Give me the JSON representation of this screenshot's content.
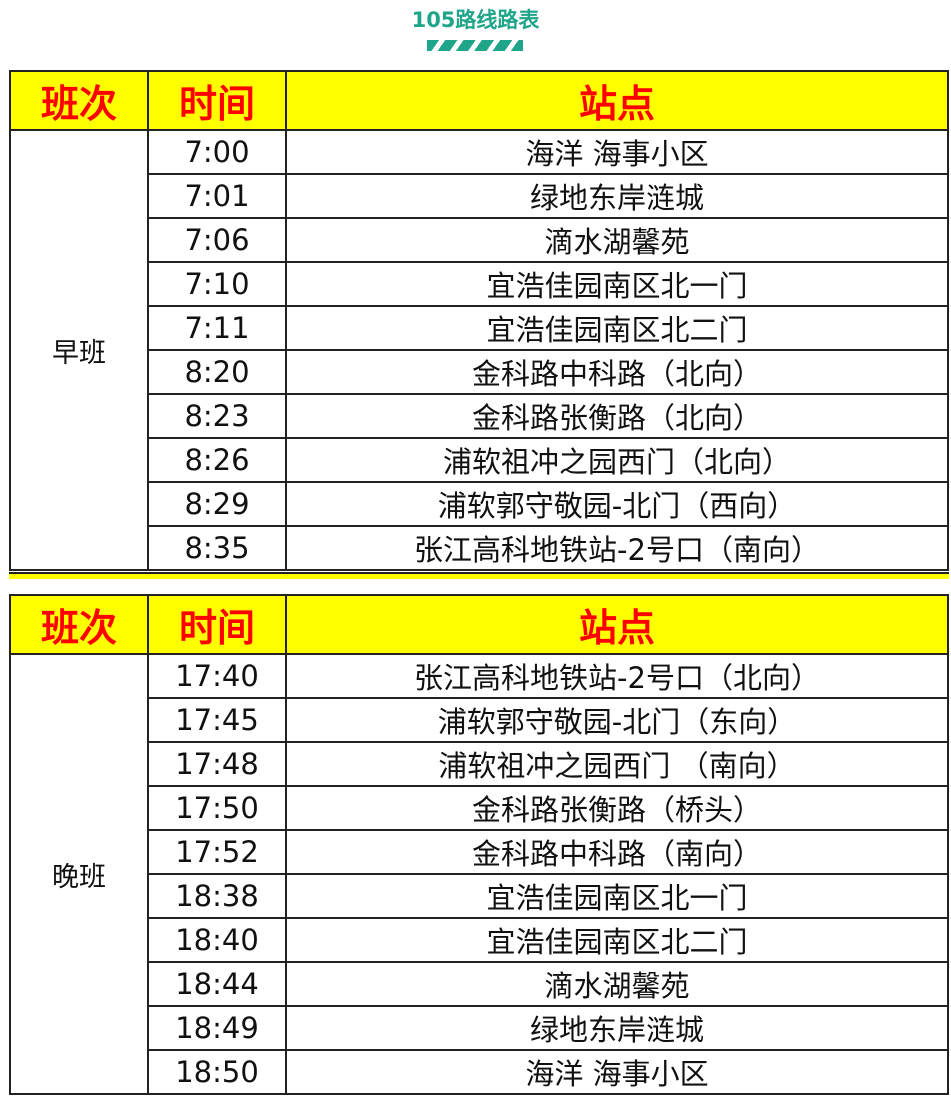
{
  "title": "105路线路表",
  "headers": {
    "shift": "班次",
    "time": "时间",
    "stop": "站点"
  },
  "morning": {
    "shift": "早班",
    "rows": [
      {
        "time": "7:00",
        "stop": "海洋 海事小区"
      },
      {
        "time": "7:01",
        "stop": "绿地东岸涟城"
      },
      {
        "time": "7:06",
        "stop": "滴水湖馨苑"
      },
      {
        "time": "7:10",
        "stop": "宜浩佳园南区北一门"
      },
      {
        "time": "7:11",
        "stop": "宜浩佳园南区北二门"
      },
      {
        "time": "8:20",
        "stop": "金科路中科路（北向）"
      },
      {
        "time": "8:23",
        "stop": "金科路张衡路（北向）"
      },
      {
        "time": "8:26",
        "stop": "浦软祖冲之园西门（北向）"
      },
      {
        "time": "8:29",
        "stop": "浦软郭守敬园-北门（西向）"
      },
      {
        "time": "8:35",
        "stop": "张江高科地铁站-2号口（南向）"
      }
    ]
  },
  "evening": {
    "shift": "晚班",
    "rows": [
      {
        "time": "17:40",
        "stop": "张江高科地铁站-2号口（北向）"
      },
      {
        "time": "17:45",
        "stop": "浦软郭守敬园-北门（东向）"
      },
      {
        "time": "17:48",
        "stop": "浦软祖冲之园西门 （南向）"
      },
      {
        "time": "17:50",
        "stop": "金科路张衡路（桥头）"
      },
      {
        "time": "17:52",
        "stop": "金科路中科路（南向）"
      },
      {
        "time": "18:38",
        "stop": "宜浩佳园南区北一门"
      },
      {
        "time": "18:40",
        "stop": "宜浩佳园南区北二门"
      },
      {
        "time": "18:44",
        "stop": "滴水湖馨苑"
      },
      {
        "time": "18:49",
        "stop": "绿地东岸涟城"
      },
      {
        "time": "18:50",
        "stop": "海洋 海事小区"
      }
    ]
  },
  "colors": {
    "accent": "#1fa58a",
    "header_bg": "#ffff00",
    "header_text": "#ff0000"
  }
}
